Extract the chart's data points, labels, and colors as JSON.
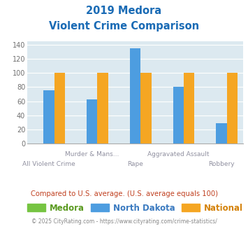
{
  "title_line1": "2019 Medora",
  "title_line2": "Violent Crime Comparison",
  "groups": {
    "Medora": [
      0,
      0,
      0,
      0,
      0
    ],
    "North Dakota": [
      75,
      63,
      135,
      80,
      29
    ],
    "National": [
      100,
      100,
      100,
      100,
      100
    ]
  },
  "colors": {
    "Medora": "#76c442",
    "North Dakota": "#4d9de0",
    "National": "#f5a623"
  },
  "ylim": [
    0,
    145
  ],
  "yticks": [
    0,
    20,
    40,
    60,
    80,
    100,
    120,
    140
  ],
  "background_color": "#dce9f0",
  "title_color": "#1a6bb5",
  "xlabel_color": "#9090a0",
  "legend_label_color_medora": "#5a9a20",
  "legend_label_color_nd": "#3a7ac0",
  "legend_label_color_nat": "#d4820a",
  "footer_text": "Compared to U.S. average. (U.S. average equals 100)",
  "footer_color": "#c04020",
  "copyright_text": "© 2025 CityRating.com - https://www.cityrating.com/crime-statistics/",
  "copyright_color": "#888888",
  "bar_width": 0.25,
  "group_positions": [
    0,
    1,
    2,
    3,
    4
  ],
  "x_labels_top": [
    "",
    "Murder & Mans...",
    "",
    "Aggravated Assault",
    ""
  ],
  "x_labels_bottom": [
    "All Violent Crime",
    "",
    "Rape",
    "",
    "Robbery"
  ]
}
